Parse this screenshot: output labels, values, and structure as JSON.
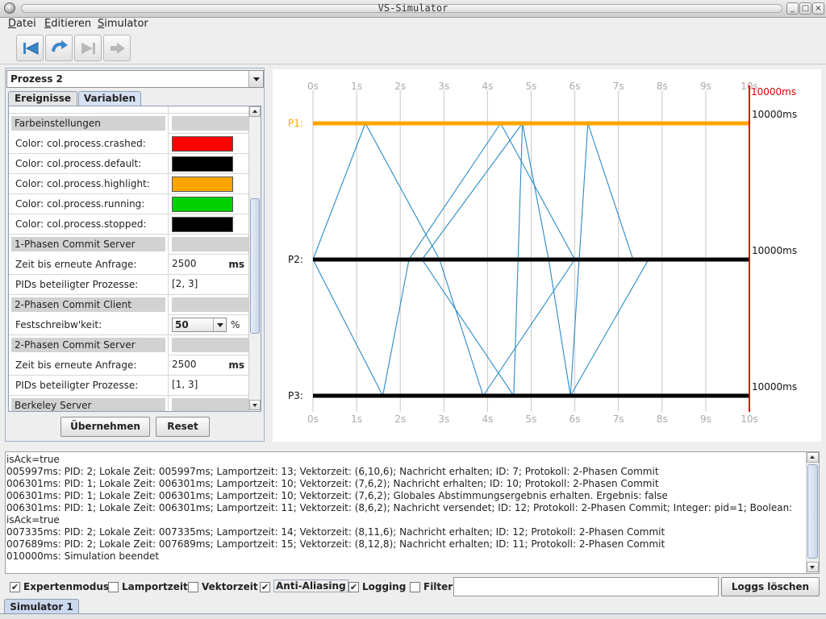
{
  "window": {
    "title": "VS-Simulator"
  },
  "menu": {
    "items": [
      "Datei",
      "Editieren",
      "Simulator"
    ]
  },
  "toolbar": {
    "icons": [
      "back-to-start-icon",
      "replay-icon",
      "skip-forward-icon",
      "forward-icon"
    ]
  },
  "left_panel": {
    "process_select": "Prozess 2",
    "tabs": [
      "Ereignisse",
      "Variablen"
    ],
    "active_tab": "Variablen",
    "rows": [
      {
        "type": "section",
        "label": "Farbeinstellungen"
      },
      {
        "type": "color",
        "label": "Color: col.process.crashed:",
        "color": "#ff0000"
      },
      {
        "type": "color",
        "label": "Color: col.process.default:",
        "color": "#000000"
      },
      {
        "type": "color",
        "label": "Color: col.process.highlight:",
        "color": "#ffa500"
      },
      {
        "type": "color",
        "label": "Color: col.process.running:",
        "color": "#00d000"
      },
      {
        "type": "color",
        "label": "Color: col.process.stopped:",
        "color": "#000000"
      },
      {
        "type": "section",
        "label": "1-Phasen Commit Server"
      },
      {
        "type": "value",
        "label": "Zeit bis erneute Anfrage:",
        "value": "2500",
        "unit": "ms"
      },
      {
        "type": "value",
        "label": "PIDs beteiligter Prozesse:",
        "value": "[2, 3]",
        "unit": ""
      },
      {
        "type": "section",
        "label": "2-Phasen Commit Client"
      },
      {
        "type": "combo",
        "label": "Festschreibw'keit:",
        "value": "50",
        "unit": "%"
      },
      {
        "type": "section",
        "label": "2-Phasen Commit Server"
      },
      {
        "type": "value",
        "label": "Zeit bis erneute Anfrage:",
        "value": "2500",
        "unit": "ms"
      },
      {
        "type": "value",
        "label": "PIDs beteiligter Prozesse:",
        "value": "[1, 3]",
        "unit": ""
      },
      {
        "type": "section",
        "label": "Berkeley Server"
      }
    ],
    "apply_button": "Übernehmen",
    "reset_button": "Reset"
  },
  "chart_data": {
    "type": "line",
    "x_ticks": [
      "0s",
      "1s",
      "2s",
      "3s",
      "4s",
      "5s",
      "6s",
      "7s",
      "8s",
      "9s",
      "10s"
    ],
    "xlim": [
      0,
      10000
    ],
    "end_marker": "10000ms",
    "processes": [
      {
        "name": "P1:",
        "color": "#ffa500",
        "end_label": "10000ms"
      },
      {
        "name": "P2:",
        "color": "#000000",
        "end_label": "10000ms"
      },
      {
        "name": "P3:",
        "color": "#000000",
        "end_label": "10000ms"
      }
    ],
    "messages": [
      {
        "from": "P2:",
        "t_send": 0,
        "to": "P1:",
        "t_recv": 1200
      },
      {
        "from": "P1:",
        "t_send": 1200,
        "to": "P2:",
        "t_recv": 2900
      },
      {
        "from": "P2:",
        "t_send": 0,
        "to": "P3:",
        "t_recv": 1600
      },
      {
        "from": "P3:",
        "t_send": 1600,
        "to": "P2:",
        "t_recv": 2200
      },
      {
        "from": "P2:",
        "t_send": 2200,
        "to": "P1:",
        "t_recv": 4300
      },
      {
        "from": "P2:",
        "t_send": 2500,
        "to": "P1:",
        "t_recv": 4800
      },
      {
        "from": "P1:",
        "t_send": 4300,
        "to": "P2:",
        "t_recv": 6000
      },
      {
        "from": "P1:",
        "t_send": 4800,
        "to": "P2:",
        "t_recv": 5400
      },
      {
        "from": "P2:",
        "t_send": 2500,
        "to": "P3:",
        "t_recv": 4600
      },
      {
        "from": "P2:",
        "t_send": 2900,
        "to": "P3:",
        "t_recv": 3900
      },
      {
        "from": "P3:",
        "t_send": 3900,
        "to": "P2:",
        "t_recv": 6000
      },
      {
        "from": "P3:",
        "t_send": 4600,
        "to": "P1:",
        "t_recv": 4800
      },
      {
        "from": "P1:",
        "t_send": 6300,
        "to": "P2:",
        "t_recv": 7335
      },
      {
        "from": "P1:",
        "t_send": 6300,
        "to": "P3:",
        "t_recv": 5900
      },
      {
        "from": "P3:",
        "t_send": 5900,
        "to": "P2:",
        "t_recv": 7689
      },
      {
        "from": "P2:",
        "t_send": 5400,
        "to": "P3:",
        "t_recv": 5900
      }
    ]
  },
  "log": {
    "lines": [
      "isAck=true",
      "005997ms: PID: 2; Lokale Zeit: 005997ms; Lamportzeit: 13; Vektorzeit: (6,10,6); Nachricht erhalten; ID: 7; Protokoll: 2-Phasen Commit",
      "006301ms: PID: 1; Lokale Zeit: 006301ms; Lamportzeit: 10; Vektorzeit: (7,6,2); Nachricht erhalten; ID: 10; Protokoll: 2-Phasen Commit",
      "006301ms: PID: 1; Lokale Zeit: 006301ms; Lamportzeit: 10; Vektorzeit: (7,6,2); Globales Abstimmungsergebnis erhalten. Ergebnis: false",
      "006301ms: PID: 1; Lokale Zeit: 006301ms; Lamportzeit: 11; Vektorzeit: (8,6,2); Nachricht versendet; ID: 12; Protokoll: 2-Phasen Commit; Integer: pid=1; Boolean:",
      "isAck=true",
      "007335ms: PID: 2; Lokale Zeit: 007335ms; Lamportzeit: 14; Vektorzeit: (8,11,6); Nachricht erhalten; ID: 12; Protokoll: 2-Phasen Commit",
      "007689ms: PID: 2; Lokale Zeit: 007689ms; Lamportzeit: 15; Vektorzeit: (8,12,8); Nachricht erhalten; ID: 11; Protokoll: 2-Phasen Commit",
      "010000ms: Simulation beendet"
    ]
  },
  "options": {
    "checkboxes": [
      {
        "label": "Expertenmodus",
        "checked": true
      },
      {
        "label": "Lamportzeit",
        "checked": false
      },
      {
        "label": "Vektorzeit",
        "checked": false
      },
      {
        "label": "Anti-Aliasing",
        "checked": true
      },
      {
        "label": "Logging",
        "checked": true
      },
      {
        "label": "Filter",
        "checked": false
      }
    ],
    "filter_value": "",
    "clear_button": "Loggs löschen"
  },
  "bottom_tab": "Simulator 1"
}
